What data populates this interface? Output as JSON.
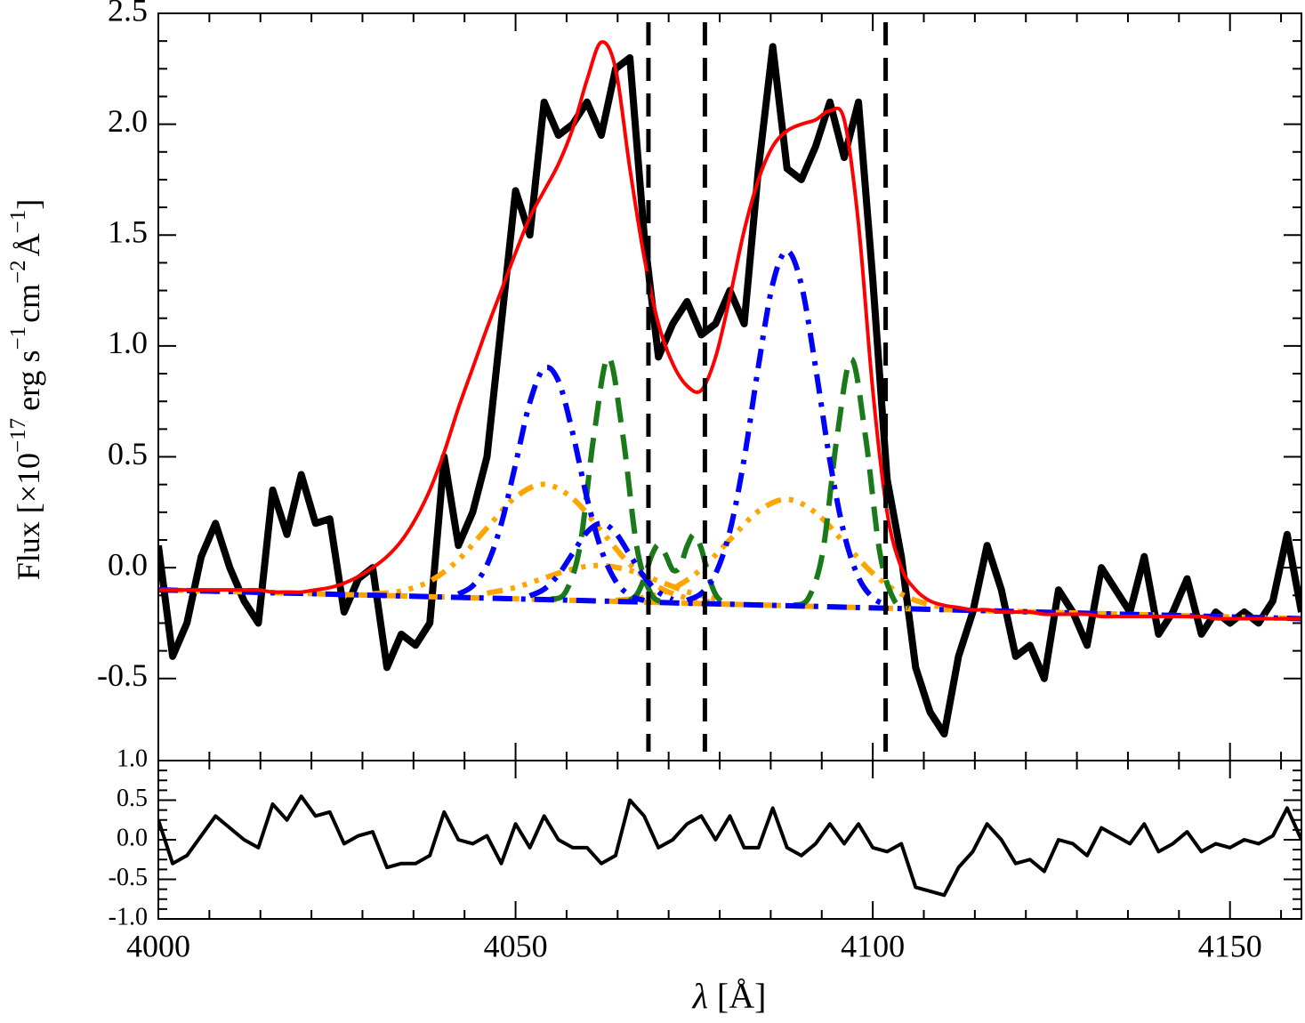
{
  "chart_data": [
    {
      "type": "line",
      "ylabel": [
        "Flux [×10",
        "−17",
        "erg s",
        "−1",
        "cm",
        "−2",
        "Å",
        "−1",
        "]"
      ],
      "xlim": [
        4000,
        4160
      ],
      "ylim": [
        -0.87,
        2.5
      ],
      "yticks": [
        2.5,
        {
          "value": 2.0,
          "label": "2.0"
        },
        1.5,
        {
          "value": 1.0,
          "label": "1.0"
        },
        0.5,
        {
          "value": 0.0,
          "label": "0.0"
        },
        -0.5
      ],
      "vlines": [
        4068.6,
        4076.5,
        4101.8
      ],
      "vline_color": "#000000",
      "x": [
        4000,
        4002,
        4004,
        4006,
        4008,
        4010,
        4012,
        4014,
        4016,
        4018,
        4020,
        4022,
        4024,
        4026,
        4028,
        4030,
        4032,
        4034,
        4036,
        4038,
        4040,
        4042,
        4044,
        4046,
        4048,
        4050,
        4052,
        4054,
        4056,
        4058,
        4060,
        4062,
        4064,
        4066,
        4068,
        4070,
        4072,
        4074,
        4076,
        4078,
        4080,
        4082,
        4084,
        4086,
        4088,
        4090,
        4092,
        4094,
        4096,
        4098,
        4100,
        4102,
        4104,
        4106,
        4108,
        4110,
        4112,
        4114,
        4116,
        4118,
        4120,
        4122,
        4124,
        4126,
        4128,
        4130,
        4132,
        4134,
        4136,
        4138,
        4140,
        4142,
        4144,
        4146,
        4148,
        4150,
        4152,
        4154,
        4156,
        4158,
        4160
      ],
      "series": [
        {
          "color": "#000000",
          "style": "solid",
          "values": [
            0.1,
            -0.4,
            -0.25,
            0.05,
            0.2,
            0.0,
            -0.15,
            -0.25,
            0.35,
            0.15,
            0.42,
            0.2,
            0.22,
            -0.2,
            -0.05,
            0.0,
            -0.45,
            -0.3,
            -0.35,
            -0.25,
            0.5,
            0.1,
            0.25,
            0.5,
            1.1,
            1.7,
            1.5,
            2.1,
            1.95,
            2.0,
            2.1,
            1.95,
            2.25,
            2.3,
            1.5,
            0.95,
            1.1,
            1.2,
            1.05,
            1.1,
            1.25,
            1.1,
            1.8,
            2.35,
            1.8,
            1.75,
            1.9,
            2.1,
            1.85,
            2.1,
            1.3,
            0.4,
            0.05,
            -0.45,
            -0.65,
            -0.75,
            -0.4,
            -0.2,
            0.1,
            -0.1,
            -0.4,
            -0.35,
            -0.5,
            -0.1,
            -0.2,
            -0.35,
            0.0,
            -0.1,
            -0.2,
            0.05,
            -0.3,
            -0.2,
            -0.05,
            -0.3,
            -0.2,
            -0.25,
            -0.2,
            -0.25,
            -0.15,
            0.15,
            -0.2
          ]
        },
        {
          "color": "#ffa500",
          "style": "dashed",
          "smooth": true,
          "x": [
            4000,
            4160
          ],
          "values": [
            -0.1,
            -0.23
          ]
        },
        {
          "color": "#ffa500",
          "style": "dashdotdotdot",
          "smooth": true,
          "x": [
            4030,
            4034,
            4038,
            4042,
            4046,
            4050,
            4054,
            4058,
            4062,
            4066,
            4070,
            4074,
            4078
          ],
          "values": [
            -0.118,
            -0.105,
            -0.061,
            0.035,
            0.179,
            0.318,
            0.376,
            0.312,
            0.166,
            0.015,
            -0.087,
            -0.137,
            -0.157
          ]
        },
        {
          "color": "#ffa500",
          "style": "dashdotdotdot",
          "smooth": true,
          "x": [
            4046,
            4050,
            4054,
            4058,
            4062,
            4066,
            4070,
            4074,
            4078
          ],
          "values": [
            -0.115,
            -0.089,
            -0.047,
            -0.006,
            0.01,
            -0.013,
            -0.06,
            -0.108,
            -0.141
          ]
        },
        {
          "color": "#ffa500",
          "style": "dashdotdotdot",
          "smooth": true,
          "x": [
            4064,
            4068,
            4072,
            4076,
            4080,
            4084,
            4088,
            4092,
            4096,
            4100,
            4104,
            4108,
            4112
          ],
          "values": [
            -0.147,
            -0.134,
            -0.094,
            -0.006,
            0.126,
            0.255,
            0.308,
            0.248,
            0.113,
            -0.025,
            -0.119,
            -0.167,
            -0.186
          ]
        },
        {
          "color": "#1a7a1a",
          "style": "dashed",
          "smooth": true,
          "x": [
            4055,
            4057,
            4059,
            4061,
            4063,
            4065,
            4067,
            4069,
            4071
          ],
          "values": [
            -0.142,
            -0.11,
            0.095,
            0.604,
            0.949,
            0.601,
            0.089,
            -0.12,
            -0.155
          ]
        },
        {
          "color": "#1a7a1a",
          "style": "dashed",
          "smooth": true,
          "x": [
            4066,
            4067,
            4068,
            4069,
            4070,
            4071,
            4072,
            4073,
            4074,
            4075,
            4076,
            4077,
            4078,
            4079,
            4080
          ],
          "values": [
            -0.146,
            -0.12,
            -0.049,
            0.051,
            0.104,
            0.059,
            -0.01,
            0.003,
            0.096,
            0.15,
            0.086,
            -0.036,
            -0.121,
            -0.155,
            -0.164
          ]
        },
        {
          "color": "#1a7a1a",
          "style": "dashed",
          "smooth": true,
          "x": [
            4089,
            4091,
            4093,
            4095,
            4097,
            4099,
            4101,
            4103,
            4105
          ],
          "values": [
            -0.169,
            -0.137,
            0.072,
            0.59,
            0.941,
            0.587,
            0.066,
            -0.147,
            -0.182
          ]
        },
        {
          "color": "#0000ff",
          "style": "dashdot",
          "smooth": true,
          "x": [
            4000,
            4160
          ],
          "values": [
            -0.1,
            -0.23
          ]
        },
        {
          "color": "#0000ff",
          "style": "dashdot",
          "smooth": true,
          "x": [
            4042,
            4044,
            4046,
            4048,
            4050,
            4052,
            4054,
            4056,
            4058,
            4060,
            4062,
            4064,
            4066,
            4068
          ],
          "values": [
            -0.119,
            -0.082,
            0.012,
            0.197,
            0.467,
            0.745,
            0.899,
            0.842,
            0.607,
            0.314,
            0.081,
            -0.06,
            -0.125,
            -0.148
          ]
        },
        {
          "color": "#0000ff",
          "style": "dashdot",
          "smooth": true,
          "x": [
            4052,
            4054,
            4056,
            4058,
            4060,
            4062,
            4064,
            4066,
            4068,
            4070,
            4072
          ],
          "values": [
            -0.127,
            -0.097,
            -0.032,
            0.065,
            0.16,
            0.2,
            0.157,
            0.058,
            -0.041,
            -0.11,
            -0.144
          ]
        },
        {
          "color": "#0000ff",
          "style": "dashdot",
          "smooth": true,
          "x": [
            4074,
            4076,
            4078,
            4080,
            4082,
            4084,
            4086,
            4088,
            4090,
            4092,
            4094,
            4096,
            4098,
            4100,
            4102
          ],
          "values": [
            -0.147,
            -0.116,
            -0.027,
            0.165,
            0.491,
            0.91,
            1.28,
            1.428,
            1.277,
            0.903,
            0.482,
            0.152,
            -0.044,
            -0.135,
            -0.17
          ]
        },
        {
          "color": "#ff0000",
          "style": "solid",
          "smooth": true,
          "values": [
            -0.1,
            -0.1,
            -0.1,
            -0.1,
            -0.1,
            -0.1,
            -0.1,
            -0.1,
            -0.11,
            -0.11,
            -0.11,
            -0.1,
            -0.09,
            -0.07,
            -0.04,
            0.0,
            0.05,
            0.12,
            0.22,
            0.35,
            0.52,
            0.72,
            0.9,
            1.08,
            1.25,
            1.42,
            1.58,
            1.7,
            1.82,
            1.98,
            2.2,
            2.37,
            2.25,
            1.8,
            1.4,
            1.1,
            0.92,
            0.82,
            0.8,
            0.95,
            1.22,
            1.52,
            1.75,
            1.9,
            1.97,
            2.0,
            2.02,
            2.06,
            2.02,
            1.55,
            0.8,
            0.25,
            0.0,
            -0.1,
            -0.15,
            -0.17,
            -0.18,
            -0.19,
            -0.19,
            -0.2,
            -0.2,
            -0.2,
            -0.21,
            -0.21,
            -0.21,
            -0.21,
            -0.22,
            -0.22,
            -0.22,
            -0.22,
            -0.22,
            -0.22,
            -0.22,
            -0.22,
            -0.23,
            -0.23,
            -0.23,
            -0.23,
            -0.23,
            -0.23,
            -0.23
          ]
        }
      ]
    },
    {
      "type": "line",
      "xlabel": [
        "λ",
        "[Å]"
      ],
      "xlim": [
        4000,
        4160
      ],
      "xticks": [
        4000,
        4050,
        4100,
        4150
      ],
      "ylim": [
        -1.0,
        1.0
      ],
      "yticks": [
        {
          "value": 1.0,
          "label": "1.0"
        },
        0.5,
        {
          "value": 0.0,
          "label": "0.0"
        },
        -0.5,
        {
          "value": -1.0,
          "label": "-1.0"
        }
      ],
      "x": [
        4000,
        4002,
        4004,
        4006,
        4008,
        4010,
        4012,
        4014,
        4016,
        4018,
        4020,
        4022,
        4024,
        4026,
        4028,
        4030,
        4032,
        4034,
        4036,
        4038,
        4040,
        4042,
        4044,
        4046,
        4048,
        4050,
        4052,
        4054,
        4056,
        4058,
        4060,
        4062,
        4064,
        4066,
        4068,
        4070,
        4072,
        4074,
        4076,
        4078,
        4080,
        4082,
        4084,
        4086,
        4088,
        4090,
        4092,
        4094,
        4096,
        4098,
        4100,
        4102,
        4104,
        4106,
        4108,
        4110,
        4112,
        4114,
        4116,
        4118,
        4120,
        4122,
        4124,
        4126,
        4128,
        4130,
        4132,
        4134,
        4136,
        4138,
        4140,
        4142,
        4144,
        4146,
        4148,
        4150,
        4152,
        4154,
        4156,
        4158,
        4160
      ],
      "series": [
        {
          "color": "#000000",
          "style": "solid",
          "values": [
            0.25,
            -0.3,
            -0.2,
            0.05,
            0.3,
            0.15,
            0.0,
            -0.1,
            0.45,
            0.25,
            0.55,
            0.3,
            0.35,
            -0.05,
            0.05,
            0.1,
            -0.35,
            -0.3,
            -0.3,
            -0.2,
            0.35,
            0.0,
            -0.05,
            0.05,
            -0.3,
            0.2,
            -0.1,
            0.3,
            0.0,
            -0.1,
            -0.1,
            -0.3,
            -0.2,
            0.5,
            0.3,
            -0.1,
            0.0,
            0.2,
            0.3,
            0.0,
            0.3,
            -0.1,
            -0.1,
            0.4,
            -0.1,
            -0.2,
            -0.05,
            0.2,
            -0.05,
            0.2,
            -0.1,
            -0.15,
            -0.05,
            -0.6,
            -0.65,
            -0.7,
            -0.35,
            -0.15,
            0.2,
            0.0,
            -0.3,
            -0.25,
            -0.4,
            0.0,
            -0.05,
            -0.2,
            0.15,
            0.05,
            -0.05,
            0.2,
            -0.15,
            -0.05,
            0.1,
            -0.15,
            -0.05,
            -0.1,
            0.0,
            -0.05,
            0.05,
            0.4,
            0.0
          ]
        }
      ]
    }
  ]
}
